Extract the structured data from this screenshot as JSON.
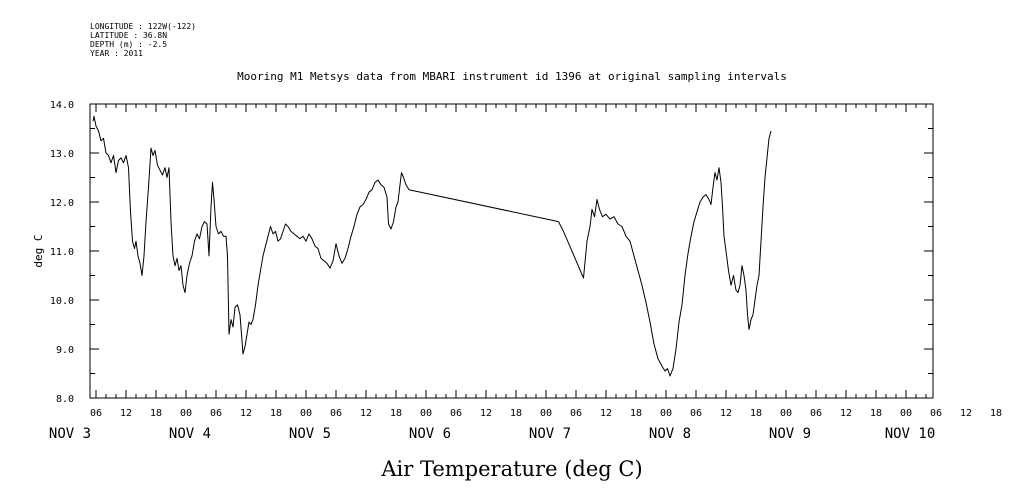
{
  "header": {
    "longitude": "LONGITUDE : 122W(-122)",
    "latitude": "LATITUDE : 36.8N",
    "depth": "DEPTH (m) : -2.5",
    "year": "YEAR : 2011"
  },
  "chart_data": {
    "type": "line",
    "title": "Mooring M1 Metsys data from MBARI instrument id 1396 at original sampling intervals",
    "xlabel": "Air Temperature (deg C)",
    "ylabel": "deg C",
    "ylim": [
      8.0,
      14.0
    ],
    "yticks": [
      "8.0",
      "9.0",
      "10.0",
      "11.0",
      "12.0",
      "13.0",
      "14.0"
    ],
    "x_unit": "hours since NOV 3 00:00 (2011)",
    "xlim": [
      5,
      141
    ],
    "hour_tick_labels": [
      "06",
      "12",
      "18",
      "00",
      "06",
      "12",
      "18",
      "00",
      "06",
      "12",
      "18",
      "00",
      "06",
      "12",
      "18",
      "00",
      "06",
      "12",
      "18",
      "00",
      "06",
      "12",
      "18",
      "00",
      "06",
      "12",
      "18",
      "00",
      "06",
      "12",
      "18",
      "00"
    ],
    "day_labels": [
      {
        "label": "NOV  3",
        "hour": 0
      },
      {
        "label": "NOV  4",
        "hour": 24
      },
      {
        "label": "NOV  5",
        "hour": 48
      },
      {
        "label": "NOV  6",
        "hour": 72
      },
      {
        "label": "NOV  7",
        "hour": 96
      },
      {
        "label": "NOV  8",
        "hour": 120
      },
      {
        "label": "NOV  9",
        "hour": 144
      },
      {
        "label": "NOV 10",
        "hour": 168
      }
    ],
    "grid": false,
    "series": [
      {
        "name": "",
        "points": [
          [
            5.4,
            13.65
          ],
          [
            5.6,
            13.75
          ],
          [
            6.0,
            13.55
          ],
          [
            6.5,
            13.45
          ],
          [
            7.0,
            13.25
          ],
          [
            7.5,
            13.3
          ],
          [
            8.0,
            13.0
          ],
          [
            8.5,
            12.95
          ],
          [
            9.0,
            12.8
          ],
          [
            9.5,
            12.95
          ],
          [
            10.0,
            12.6
          ],
          [
            10.5,
            12.85
          ],
          [
            11.0,
            12.9
          ],
          [
            11.5,
            12.8
          ],
          [
            12.0,
            12.95
          ],
          [
            12.5,
            12.7
          ],
          [
            12.9,
            11.8
          ],
          [
            13.3,
            11.2
          ],
          [
            13.7,
            11.05
          ],
          [
            14.0,
            11.2
          ],
          [
            14.4,
            10.9
          ],
          [
            14.8,
            10.75
          ],
          [
            15.2,
            10.5
          ],
          [
            15.6,
            10.9
          ],
          [
            16.0,
            11.6
          ],
          [
            16.5,
            12.3
          ],
          [
            17.0,
            13.1
          ],
          [
            17.4,
            12.95
          ],
          [
            17.8,
            13.05
          ],
          [
            18.3,
            12.75
          ],
          [
            18.8,
            12.65
          ],
          [
            19.3,
            12.55
          ],
          [
            19.8,
            12.7
          ],
          [
            20.2,
            12.5
          ],
          [
            20.6,
            12.7
          ],
          [
            21.0,
            11.6
          ],
          [
            21.4,
            10.9
          ],
          [
            21.8,
            10.7
          ],
          [
            22.2,
            10.85
          ],
          [
            22.6,
            10.6
          ],
          [
            23.0,
            10.7
          ],
          [
            23.4,
            10.3
          ],
          [
            23.8,
            10.15
          ],
          [
            24.2,
            10.5
          ],
          [
            24.7,
            10.75
          ],
          [
            25.2,
            10.9
          ],
          [
            25.7,
            11.2
          ],
          [
            26.2,
            11.35
          ],
          [
            26.7,
            11.25
          ],
          [
            27.2,
            11.5
          ],
          [
            27.7,
            11.6
          ],
          [
            28.2,
            11.55
          ],
          [
            28.6,
            10.9
          ],
          [
            29.0,
            11.9
          ],
          [
            29.3,
            12.4
          ],
          [
            29.6,
            12.05
          ],
          [
            30.0,
            11.5
          ],
          [
            30.5,
            11.35
          ],
          [
            31.0,
            11.4
          ],
          [
            31.5,
            11.3
          ],
          [
            32.0,
            11.3
          ],
          [
            32.3,
            10.9
          ],
          [
            32.6,
            9.3
          ],
          [
            33.0,
            9.6
          ],
          [
            33.4,
            9.45
          ],
          [
            33.8,
            9.85
          ],
          [
            34.3,
            9.9
          ],
          [
            34.8,
            9.7
          ],
          [
            35.1,
            9.3
          ],
          [
            35.4,
            8.9
          ],
          [
            35.8,
            9.05
          ],
          [
            36.2,
            9.3
          ],
          [
            36.6,
            9.55
          ],
          [
            37.0,
            9.5
          ],
          [
            37.4,
            9.6
          ],
          [
            37.9,
            9.9
          ],
          [
            38.4,
            10.3
          ],
          [
            38.9,
            10.6
          ],
          [
            39.4,
            10.9
          ],
          [
            39.9,
            11.1
          ],
          [
            40.4,
            11.3
          ],
          [
            40.9,
            11.5
          ],
          [
            41.4,
            11.35
          ],
          [
            41.9,
            11.4
          ],
          [
            42.4,
            11.2
          ],
          [
            42.9,
            11.25
          ],
          [
            43.4,
            11.4
          ],
          [
            43.9,
            11.55
          ],
          [
            44.4,
            11.5
          ],
          [
            45.0,
            11.4
          ],
          [
            45.6,
            11.35
          ],
          [
            46.2,
            11.3
          ],
          [
            46.8,
            11.25
          ],
          [
            47.4,
            11.3
          ],
          [
            48.0,
            11.2
          ],
          [
            48.6,
            11.35
          ],
          [
            49.2,
            11.25
          ],
          [
            49.8,
            11.1
          ],
          [
            50.4,
            11.05
          ],
          [
            51.0,
            10.85
          ],
          [
            51.6,
            10.8
          ],
          [
            52.2,
            10.75
          ],
          [
            52.8,
            10.65
          ],
          [
            53.4,
            10.8
          ],
          [
            54.0,
            11.15
          ],
          [
            54.6,
            10.9
          ],
          [
            55.2,
            10.75
          ],
          [
            55.8,
            10.85
          ],
          [
            56.4,
            11.05
          ],
          [
            57.0,
            11.3
          ],
          [
            57.6,
            11.5
          ],
          [
            58.2,
            11.75
          ],
          [
            58.8,
            11.9
          ],
          [
            59.4,
            11.95
          ],
          [
            60.0,
            12.05
          ],
          [
            60.6,
            12.2
          ],
          [
            61.2,
            12.25
          ],
          [
            61.8,
            12.4
          ],
          [
            62.4,
            12.45
          ],
          [
            63.0,
            12.35
          ],
          [
            63.6,
            12.3
          ],
          [
            64.2,
            12.1
          ],
          [
            64.5,
            11.55
          ],
          [
            65.0,
            11.45
          ],
          [
            65.5,
            11.6
          ],
          [
            66.0,
            11.9
          ],
          [
            66.4,
            12.0
          ],
          [
            66.8,
            12.35
          ],
          [
            67.1,
            12.6
          ],
          [
            67.5,
            12.5
          ],
          [
            68.0,
            12.35
          ],
          [
            68.6,
            12.25
          ],
          [
            98.5,
            11.6
          ],
          [
            99.0,
            11.5
          ],
          [
            99.5,
            11.4
          ],
          [
            103.5,
            10.45
          ],
          [
            104.2,
            11.2
          ],
          [
            104.8,
            11.5
          ],
          [
            105.2,
            11.85
          ],
          [
            105.7,
            11.7
          ],
          [
            106.2,
            12.05
          ],
          [
            106.7,
            11.85
          ],
          [
            107.3,
            11.7
          ],
          [
            108.0,
            11.75
          ],
          [
            108.8,
            11.65
          ],
          [
            109.6,
            11.7
          ],
          [
            110.4,
            11.55
          ],
          [
            111.2,
            11.5
          ],
          [
            112.0,
            11.3
          ],
          [
            112.8,
            11.2
          ],
          [
            113.6,
            10.9
          ],
          [
            114.4,
            10.6
          ],
          [
            115.2,
            10.3
          ],
          [
            116.0,
            9.95
          ],
          [
            116.8,
            9.55
          ],
          [
            117.6,
            9.1
          ],
          [
            118.4,
            8.8
          ],
          [
            119.2,
            8.65
          ],
          [
            119.8,
            8.55
          ],
          [
            120.3,
            8.6
          ],
          [
            120.8,
            8.45
          ],
          [
            121.4,
            8.6
          ],
          [
            122.0,
            9.0
          ],
          [
            122.6,
            9.55
          ],
          [
            123.2,
            9.9
          ],
          [
            123.8,
            10.5
          ],
          [
            124.4,
            10.95
          ],
          [
            125.0,
            11.3
          ],
          [
            125.6,
            11.6
          ],
          [
            126.2,
            11.8
          ],
          [
            126.8,
            12.0
          ],
          [
            127.4,
            12.1
          ],
          [
            128.0,
            12.15
          ],
          [
            128.6,
            12.05
          ],
          [
            129.0,
            11.95
          ],
          [
            129.4,
            12.3
          ],
          [
            129.8,
            12.6
          ],
          [
            130.2,
            12.45
          ],
          [
            130.6,
            12.7
          ],
          [
            131.0,
            12.4
          ],
          [
            131.3,
            11.9
          ],
          [
            131.6,
            11.3
          ],
          [
            132.0,
            11.0
          ],
          [
            132.5,
            10.6
          ],
          [
            133.0,
            10.3
          ],
          [
            133.5,
            10.5
          ],
          [
            134.0,
            10.2
          ],
          [
            134.4,
            10.15
          ],
          [
            134.8,
            10.3
          ],
          [
            135.2,
            10.7
          ],
          [
            135.6,
            10.5
          ],
          [
            136.0,
            10.2
          ],
          [
            136.3,
            9.7
          ],
          [
            136.6,
            9.4
          ],
          [
            137.0,
            9.6
          ],
          [
            137.4,
            9.7
          ],
          [
            137.8,
            10.0
          ],
          [
            138.2,
            10.3
          ],
          [
            138.6,
            10.5
          ],
          [
            139.0,
            11.2
          ],
          [
            139.4,
            11.9
          ],
          [
            139.8,
            12.5
          ],
          [
            140.2,
            12.9
          ],
          [
            140.6,
            13.3
          ],
          [
            141.0,
            13.45
          ]
        ]
      }
    ]
  }
}
